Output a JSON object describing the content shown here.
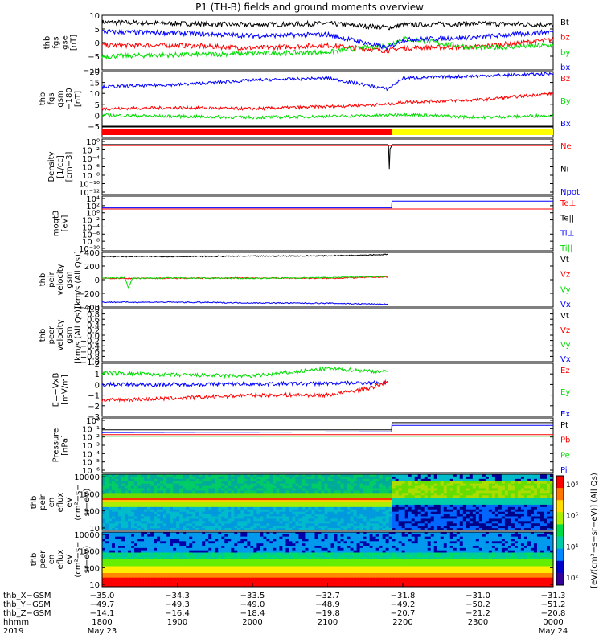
{
  "title": "P1 (TH-B) fields and ground moments overview",
  "colors": {
    "black": "#000000",
    "red": "#ff0000",
    "green": "#00dd00",
    "blue": "#0000ff",
    "yellow": "#ffff00",
    "gray": "#999999"
  },
  "chart_data": [
    {
      "type": "line",
      "ylabel": [
        "thb",
        "fgs",
        "gse",
        "[nT]"
      ],
      "ylim": [
        -10,
        10
      ],
      "yticks": [
        "10",
        "5",
        "0",
        "−5",
        "−10"
      ],
      "yticks_values": [
        10,
        5,
        0,
        -5,
        -10
      ],
      "legend": [
        {
          "label": "Bt",
          "color": "#000000"
        },
        {
          "label": "bz",
          "color": "#ff0000"
        },
        {
          "label": "by",
          "color": "#00dd00"
        },
        {
          "label": "bx",
          "color": "#0000ff"
        }
      ],
      "series": [
        {
          "name": "Bt",
          "color": "#000000",
          "x": [
            18,
            19,
            20,
            21,
            21.8,
            22,
            23,
            24
          ],
          "values": [
            7.5,
            7,
            6.5,
            7,
            5.5,
            6.5,
            7,
            6.5
          ]
        },
        {
          "name": "bz",
          "color": "#ff0000",
          "x": [
            18,
            19,
            20,
            21,
            21.8,
            22,
            23,
            24
          ],
          "values": [
            -1,
            -1,
            -2,
            -1,
            -3,
            -2,
            -1.5,
            1
          ]
        },
        {
          "name": "by",
          "color": "#00dd00",
          "x": [
            18,
            19,
            20,
            21,
            21.8,
            22,
            23,
            24
          ],
          "values": [
            -5,
            -4.5,
            -4,
            -3.5,
            -1,
            1.5,
            -2,
            -1
          ]
        },
        {
          "name": "bx",
          "color": "#0000ff",
          "x": [
            18,
            19,
            20,
            21,
            21.8,
            22,
            23,
            24
          ],
          "values": [
            4,
            3.5,
            2.5,
            3,
            -2,
            1,
            2,
            4
          ]
        }
      ]
    },
    {
      "type": "line",
      "ylabel": [
        "thb",
        "fgs",
        "gsm",
        "−180",
        "[nT]"
      ],
      "ylim": [
        -5,
        20
      ],
      "yticks": [
        "20",
        "15",
        "10",
        "5",
        "0",
        "−5"
      ],
      "yticks_values": [
        20,
        15,
        10,
        5,
        0,
        -5
      ],
      "legend": [
        {
          "label": "Bz",
          "color": "#ff0000"
        },
        {
          "label": "By",
          "color": "#00dd00"
        },
        {
          "label": "Bx",
          "color": "#0000ff"
        }
      ],
      "series": [
        {
          "name": "Bz",
          "color": "#ff0000",
          "x": [
            18,
            19,
            20,
            21,
            21.8,
            22,
            23,
            24
          ],
          "values": [
            3,
            3.5,
            3,
            4,
            5,
            6,
            7,
            10
          ]
        },
        {
          "name": "By",
          "color": "#00dd00",
          "x": [
            18,
            19,
            20,
            21,
            21.8,
            22,
            23,
            24
          ],
          "values": [
            0,
            -0.5,
            -1,
            -0.5,
            0,
            0.5,
            -1,
            0
          ]
        },
        {
          "name": "Bx",
          "color": "#0000ff",
          "x": [
            18,
            19,
            20,
            21,
            21.8,
            22,
            23,
            24
          ],
          "values": [
            13,
            14,
            16,
            17,
            12,
            17,
            18,
            19
          ]
        }
      ]
    },
    {
      "type": "bar",
      "segments": [
        {
          "x0": 18,
          "x1": 21.85,
          "color": "#ff0000"
        },
        {
          "x0": 21.85,
          "x1": 24,
          "color": "#ffff00"
        }
      ]
    },
    {
      "type": "line",
      "yscale": "log",
      "ylabel": [
        "Density",
        "[1/cc]",
        "[cm−3]"
      ],
      "yticks": [
        "10⁰",
        "10⁻²",
        "10⁻⁴",
        "10⁻⁶",
        "10⁻⁸",
        "10⁻¹⁰",
        "10⁻¹²"
      ],
      "legend": [
        {
          "label": "Ne",
          "color": "#ff0000"
        },
        {
          "label": "Ni",
          "color": "#000000"
        },
        {
          "label": "Npot",
          "color": "#0000ff"
        }
      ],
      "series": [
        {
          "name": "Ni",
          "color": "#000000",
          "x": [
            18,
            21.8,
            21.82,
            21.84,
            21.86,
            24
          ],
          "values": [
            0.5,
            0.5,
            1e-06,
            0.1,
            0.5,
            0.5
          ]
        },
        {
          "name": "Ne",
          "color": "#ff0000",
          "x": [
            18,
            24
          ],
          "values": [
            0.3,
            0.3
          ]
        }
      ]
    },
    {
      "type": "line",
      "yscale": "log",
      "ylabel": [
        "moqt3",
        "[eV]"
      ],
      "yticks": [
        "10⁴",
        "10²",
        "10⁰",
        "10⁻²",
        "10⁻⁴",
        "10⁻⁶",
        "10⁻⁸",
        "10⁻¹⁰"
      ],
      "legend": [
        {
          "label": "Te⊥",
          "color": "#ff0000"
        },
        {
          "label": "Te||",
          "color": "#000000"
        },
        {
          "label": "Ti⊥",
          "color": "#0000ff"
        },
        {
          "label": "Ti||",
          "color": "#00dd00"
        }
      ],
      "series": [
        {
          "name": "Ti⊥",
          "color": "#0000ff",
          "x": [
            18,
            21.85,
            21.86,
            24
          ],
          "values": [
            10,
            10,
            500,
            500
          ]
        },
        {
          "name": "Te⊥",
          "color": "#ff0000",
          "x": [
            18,
            24
          ],
          "values": [
            5,
            5
          ]
        }
      ]
    },
    {
      "type": "line",
      "ylabel": [
        "thb",
        "peir",
        "velocity",
        "gsm",
        "[km/s (All Qs)]"
      ],
      "ylim": [
        -400,
        400
      ],
      "yticks": [
        "400",
        "200",
        "0",
        "−200",
        "−400"
      ],
      "yticks_values": [
        400,
        200,
        0,
        -200,
        -400
      ],
      "legend": [
        {
          "label": "Vt",
          "color": "#000000"
        },
        {
          "label": "Vz",
          "color": "#ff0000"
        },
        {
          "label": "Vy",
          "color": "#00dd00"
        },
        {
          "label": "Vx",
          "color": "#0000ff"
        }
      ],
      "series": [
        {
          "name": "Vt",
          "color": "#000000",
          "x": [
            18,
            19,
            20,
            21,
            21.8
          ],
          "values": [
            340,
            340,
            345,
            350,
            370
          ]
        },
        {
          "name": "Vz",
          "color": "#ff0000",
          "x": [
            18,
            19,
            20,
            21,
            21.8
          ],
          "values": [
            20,
            20,
            25,
            20,
            40
          ]
        },
        {
          "name": "Vy",
          "color": "#00dd00",
          "x": [
            18,
            18.3,
            18.35,
            18.4,
            19,
            20,
            21,
            21.8
          ],
          "values": [
            20,
            30,
            -120,
            20,
            25,
            20,
            30,
            50
          ]
        },
        {
          "name": "Vx",
          "color": "#0000ff",
          "x": [
            18,
            19,
            20,
            21,
            21.8
          ],
          "values": [
            -330,
            -330,
            -340,
            -345,
            -360
          ]
        }
      ]
    },
    {
      "type": "line",
      "ylabel": [
        "thb",
        "peer",
        "velocity",
        "gsm",
        "[km/s (All Qs)]"
      ],
      "ylim": [
        -1,
        1
      ],
      "yticks": [
        "1.0",
        "0.8",
        "0.6",
        "0.4",
        "0.2",
        "0.0",
        "−0.2",
        "−0.4",
        "−0.6",
        "−0.8",
        "−1.0"
      ],
      "yticks_values": [
        1.0,
        0.8,
        0.6,
        0.4,
        0.2,
        0.0,
        -0.2,
        -0.4,
        -0.6,
        -0.8,
        -1.0
      ],
      "legend": [
        {
          "label": "Vt",
          "color": "#000000"
        },
        {
          "label": "Vz",
          "color": "#ff0000"
        },
        {
          "label": "Vy",
          "color": "#00dd00"
        },
        {
          "label": "Vx",
          "color": "#0000ff"
        }
      ],
      "series": []
    },
    {
      "type": "line",
      "ylabel": [
        "E=−VxB",
        "[mV/m]"
      ],
      "ylim": [
        -3,
        2
      ],
      "yticks": [
        "2",
        "1",
        "0",
        "−1",
        "−2",
        "−3"
      ],
      "yticks_values": [
        2,
        1,
        0,
        -1,
        -2,
        -3
      ],
      "legend": [
        {
          "label": "Ez",
          "color": "#ff0000"
        },
        {
          "label": "Ey",
          "color": "#00dd00"
        },
        {
          "label": "Ex",
          "color": "#0000ff"
        }
      ],
      "series": [
        {
          "name": "Ey",
          "color": "#00dd00",
          "x": [
            18,
            19,
            20,
            21,
            21.8
          ],
          "values": [
            1.1,
            0.9,
            0.8,
            1.5,
            1.2
          ]
        },
        {
          "name": "Ex",
          "color": "#0000ff",
          "x": [
            18,
            19,
            20,
            21,
            21.8
          ],
          "values": [
            0,
            0,
            0.05,
            0.1,
            0.2
          ]
        },
        {
          "name": "Ez",
          "color": "#ff0000",
          "x": [
            18,
            19,
            20,
            21,
            21.6,
            21.8
          ],
          "values": [
            -1.5,
            -1.3,
            -1.0,
            -1.0,
            -0.3,
            0.3
          ]
        }
      ]
    },
    {
      "type": "line",
      "yscale": "log",
      "ylabel": [
        "Pressure",
        "[nPa]"
      ],
      "yticks": [
        "10⁰",
        "10⁻¹",
        "10⁻²",
        "10⁻³",
        "10⁻⁴",
        "10⁻⁵",
        "10⁻⁶"
      ],
      "legend": [
        {
          "label": "Pt",
          "color": "#000000"
        },
        {
          "label": "Pb",
          "color": "#ff0000"
        },
        {
          "label": "Pe",
          "color": "#00dd00"
        },
        {
          "label": "Pi",
          "color": "#0000ff"
        }
      ],
      "series": [
        {
          "name": "Pt",
          "color": "#000000",
          "x": [
            18,
            21.85,
            21.86,
            24
          ],
          "values": [
            0.05,
            0.05,
            0.3,
            0.3
          ]
        },
        {
          "name": "Pi",
          "color": "#0000ff",
          "x": [
            18,
            21.85,
            21.86,
            24
          ],
          "values": [
            0.025,
            0.03,
            0.15,
            0.15
          ]
        },
        {
          "name": "Pb",
          "color": "#ff0000",
          "x": [
            18,
            24
          ],
          "values": [
            0.015,
            0.015
          ]
        },
        {
          "name": "Pe",
          "color": "#00dd00",
          "x": [
            18,
            24
          ],
          "values": [
            0.01,
            0.01
          ]
        }
      ]
    },
    {
      "type": "heatmap",
      "ylabel": [
        "thb",
        "peir",
        "en",
        "eflux",
        "eV",
        "(cm²−s−",
        "sr−eV)"
      ],
      "yscale": "log",
      "yticks": [
        "10000",
        "1000",
        "100",
        "10"
      ]
    },
    {
      "type": "heatmap",
      "ylabel": [
        "thb",
        "peer",
        "en",
        "eflux",
        "eV",
        "(cm²−s−",
        "sr−eV)"
      ],
      "yscale": "log",
      "yticks": [
        "10000",
        "1000",
        "100",
        "10"
      ]
    }
  ],
  "colorbar": {
    "label": "[eV/(cm²−s−sr−eV)] (All Qs)",
    "ticks": [
      "10⁸",
      "10⁶",
      "10⁴",
      "10²"
    ]
  },
  "xaxis": {
    "rows": [
      {
        "label": "thb_X−GSM",
        "values": [
          "−35.0",
          "−34.3",
          "−33.5",
          "−32.7",
          "−31.8",
          "−31.0",
          "−31.3"
        ]
      },
      {
        "label": "thb_Y−GSM",
        "values": [
          "−49.7",
          "−49.3",
          "−49.0",
          "−48.9",
          "−49.2",
          "−50.2",
          "−51.2"
        ]
      },
      {
        "label": "thb_Z−GSM",
        "values": [
          "−14.1",
          "−16.4",
          "−18.4",
          "−19.8",
          "−20.7",
          "−21.2",
          "−20.8"
        ]
      },
      {
        "label": "hhmm",
        "values": [
          "1800",
          "1900",
          "2000",
          "2100",
          "2200",
          "2300",
          "0000"
        ]
      }
    ],
    "year": "2019",
    "date_start": "May 23",
    "date_end": "May 24"
  }
}
